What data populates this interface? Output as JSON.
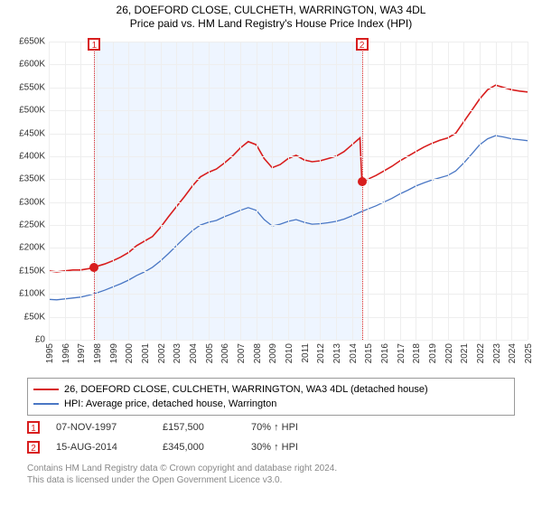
{
  "title": {
    "main": "26, DOEFORD CLOSE, CULCHETH, WARRINGTON, WA3 4DL",
    "sub": "Price paid vs. HM Land Registry's House Price Index (HPI)"
  },
  "chart": {
    "type": "line",
    "background_color": "#ffffff",
    "grid_color": "#eeeeee",
    "ylim": [
      0,
      650000
    ],
    "ytick_step": 50000,
    "ytick_labels": [
      "£0",
      "£50K",
      "£100K",
      "£150K",
      "£200K",
      "£250K",
      "£300K",
      "£350K",
      "£400K",
      "£450K",
      "£500K",
      "£550K",
      "£600K",
      "£650K"
    ],
    "xlim": [
      1995,
      2025
    ],
    "xtick_step": 1,
    "xtick_labels": [
      "1995",
      "1996",
      "1997",
      "1998",
      "1999",
      "2000",
      "2001",
      "2002",
      "2003",
      "2004",
      "2005",
      "2006",
      "2007",
      "2008",
      "2009",
      "2010",
      "2011",
      "2012",
      "2013",
      "2014",
      "2015",
      "2016",
      "2017",
      "2018",
      "2019",
      "2020",
      "2021",
      "2022",
      "2023",
      "2024",
      "2025"
    ],
    "x_label_fontsize": 10,
    "y_label_fontsize": 10,
    "shade_color": "rgba(160,200,255,0.18)",
    "shade_start": 1997.85,
    "shade_end": 2014.62,
    "series": [
      {
        "id": "property",
        "label": "26, DOEFORD CLOSE, CULCHETH, WARRINGTON, WA3 4DL (detached house)",
        "color": "#d81e1e",
        "line_width": 1.6,
        "data": [
          [
            1995.0,
            150000
          ],
          [
            1995.5,
            148000
          ],
          [
            1996.0,
            150000
          ],
          [
            1996.5,
            152000
          ],
          [
            1997.0,
            152000
          ],
          [
            1997.5,
            155000
          ],
          [
            1997.85,
            157500
          ],
          [
            1998.0,
            160000
          ],
          [
            1998.5,
            165000
          ],
          [
            1999.0,
            172000
          ],
          [
            1999.5,
            180000
          ],
          [
            2000.0,
            190000
          ],
          [
            2000.5,
            205000
          ],
          [
            2001.0,
            215000
          ],
          [
            2001.5,
            225000
          ],
          [
            2002.0,
            245000
          ],
          [
            2002.5,
            268000
          ],
          [
            2003.0,
            290000
          ],
          [
            2003.5,
            312000
          ],
          [
            2004.0,
            335000
          ],
          [
            2004.5,
            355000
          ],
          [
            2005.0,
            365000
          ],
          [
            2005.5,
            372000
          ],
          [
            2006.0,
            385000
          ],
          [
            2006.5,
            400000
          ],
          [
            2007.0,
            418000
          ],
          [
            2007.5,
            432000
          ],
          [
            2008.0,
            425000
          ],
          [
            2008.5,
            395000
          ],
          [
            2009.0,
            375000
          ],
          [
            2009.5,
            382000
          ],
          [
            2010.0,
            395000
          ],
          [
            2010.5,
            402000
          ],
          [
            2011.0,
            392000
          ],
          [
            2011.5,
            388000
          ],
          [
            2012.0,
            390000
          ],
          [
            2012.5,
            395000
          ],
          [
            2013.0,
            400000
          ],
          [
            2013.5,
            410000
          ],
          [
            2014.0,
            425000
          ],
          [
            2014.5,
            440000
          ],
          [
            2014.62,
            345000
          ],
          [
            2015.0,
            350000
          ],
          [
            2015.5,
            358000
          ],
          [
            2016.0,
            368000
          ],
          [
            2016.5,
            378000
          ],
          [
            2017.0,
            390000
          ],
          [
            2017.5,
            400000
          ],
          [
            2018.0,
            410000
          ],
          [
            2018.5,
            420000
          ],
          [
            2019.0,
            428000
          ],
          [
            2019.5,
            435000
          ],
          [
            2020.0,
            440000
          ],
          [
            2020.5,
            450000
          ],
          [
            2021.0,
            475000
          ],
          [
            2021.5,
            500000
          ],
          [
            2022.0,
            525000
          ],
          [
            2022.5,
            545000
          ],
          [
            2023.0,
            555000
          ],
          [
            2023.5,
            550000
          ],
          [
            2024.0,
            545000
          ],
          [
            2024.5,
            542000
          ],
          [
            2025.0,
            540000
          ]
        ]
      },
      {
        "id": "hpi",
        "label": "HPI: Average price, detached house, Warrington",
        "color": "#4a77c4",
        "line_width": 1.3,
        "data": [
          [
            1995.0,
            88000
          ],
          [
            1995.5,
            87000
          ],
          [
            1996.0,
            89000
          ],
          [
            1996.5,
            91000
          ],
          [
            1997.0,
            93000
          ],
          [
            1997.5,
            97000
          ],
          [
            1998.0,
            102000
          ],
          [
            1998.5,
            108000
          ],
          [
            1999.0,
            115000
          ],
          [
            1999.5,
            122000
          ],
          [
            2000.0,
            130000
          ],
          [
            2000.5,
            140000
          ],
          [
            2001.0,
            148000
          ],
          [
            2001.5,
            158000
          ],
          [
            2002.0,
            172000
          ],
          [
            2002.5,
            188000
          ],
          [
            2003.0,
            205000
          ],
          [
            2003.5,
            222000
          ],
          [
            2004.0,
            238000
          ],
          [
            2004.5,
            250000
          ],
          [
            2005.0,
            256000
          ],
          [
            2005.5,
            260000
          ],
          [
            2006.0,
            268000
          ],
          [
            2006.5,
            275000
          ],
          [
            2007.0,
            282000
          ],
          [
            2007.5,
            288000
          ],
          [
            2008.0,
            282000
          ],
          [
            2008.5,
            262000
          ],
          [
            2009.0,
            248000
          ],
          [
            2009.5,
            252000
          ],
          [
            2010.0,
            258000
          ],
          [
            2010.5,
            262000
          ],
          [
            2011.0,
            256000
          ],
          [
            2011.5,
            252000
          ],
          [
            2012.0,
            253000
          ],
          [
            2012.5,
            255000
          ],
          [
            2013.0,
            258000
          ],
          [
            2013.5,
            263000
          ],
          [
            2014.0,
            270000
          ],
          [
            2014.5,
            278000
          ],
          [
            2015.0,
            285000
          ],
          [
            2015.5,
            292000
          ],
          [
            2016.0,
            300000
          ],
          [
            2016.5,
            308000
          ],
          [
            2017.0,
            318000
          ],
          [
            2017.5,
            326000
          ],
          [
            2018.0,
            335000
          ],
          [
            2018.5,
            342000
          ],
          [
            2019.0,
            348000
          ],
          [
            2019.5,
            353000
          ],
          [
            2020.0,
            358000
          ],
          [
            2020.5,
            368000
          ],
          [
            2021.0,
            385000
          ],
          [
            2021.5,
            405000
          ],
          [
            2022.0,
            425000
          ],
          [
            2022.5,
            438000
          ],
          [
            2023.0,
            445000
          ],
          [
            2023.5,
            442000
          ],
          [
            2024.0,
            438000
          ],
          [
            2024.5,
            436000
          ],
          [
            2025.0,
            434000
          ]
        ]
      }
    ],
    "markers": [
      {
        "n": "1",
        "x": 1997.85,
        "y": 157500,
        "color": "#d81e1e"
      },
      {
        "n": "2",
        "x": 2014.62,
        "y": 345000,
        "color": "#d81e1e"
      }
    ]
  },
  "legend": {
    "border_color": "#999999",
    "fontsize": 11
  },
  "sales": [
    {
      "n": "1",
      "date": "07-NOV-1997",
      "price": "£157,500",
      "note": "70% ↑ HPI",
      "color": "#d81e1e"
    },
    {
      "n": "2",
      "date": "15-AUG-2014",
      "price": "£345,000",
      "note": "30% ↑ HPI",
      "color": "#d81e1e"
    }
  ],
  "attribution": {
    "line1": "Contains HM Land Registry data © Crown copyright and database right 2024.",
    "line2": "This data is licensed under the Open Government Licence v3.0.",
    "color": "#888888",
    "fontsize": 10
  }
}
